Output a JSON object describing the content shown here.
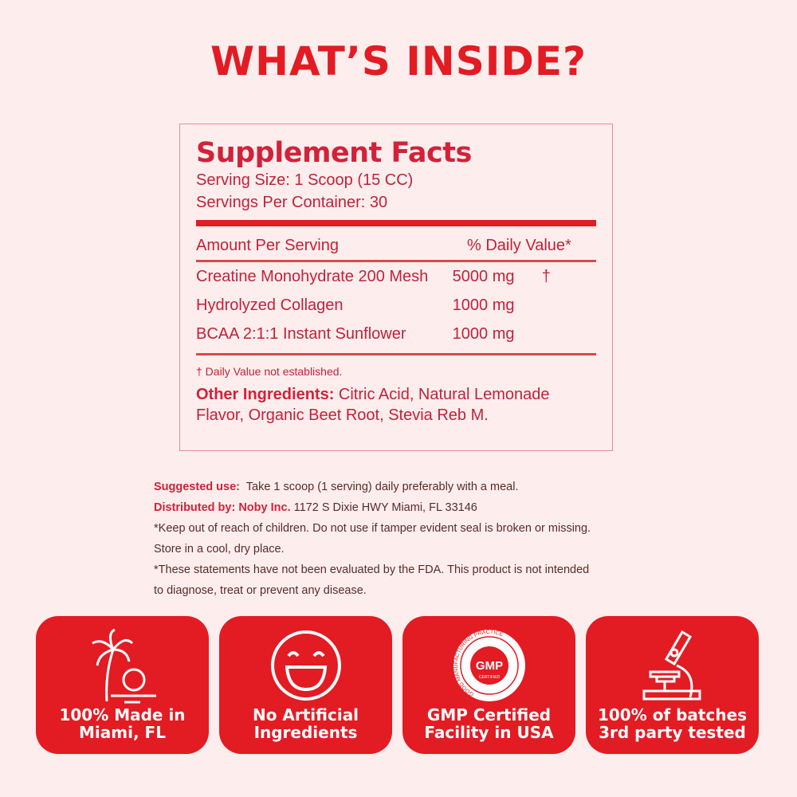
{
  "title": "WHAT’S INSIDE?",
  "facts": {
    "heading": "Supplement Facts",
    "serving_size": "Serving Size: 1 Scoop (15 CC)",
    "servings": "Servings Per Container: 30",
    "col_amount": "Amount Per Serving",
    "col_dv": "% Daily Value*",
    "rows": [
      {
        "name": "Creatine Monohydrate 200 Mesh",
        "amount": "5000 mg",
        "dv": "†"
      },
      {
        "name": "Hydrolyzed Collagen",
        "amount": "1000 mg",
        "dv": ""
      },
      {
        "name": "BCAA 2:1:1 Instant Sunflower",
        "amount": "1000 mg",
        "dv": ""
      }
    ],
    "dagger_note": "† Daily Value not established.",
    "other_label": "Other Ingredients:",
    "other_text": " Citric Acid, Natural Lemonade Flavor, Organic Beet Root, Stevia Reb M."
  },
  "notes": {
    "use_label": "Suggested use:",
    "use_text": "  Take 1 scoop (1 serving) daily preferably with a meal.",
    "dist_label": "Distributed by: Noby Inc.",
    "dist_text": " 1172 S Dixie HWY Miami, FL 33146",
    "keep": "*Keep out of reach of children. Do not use if tamper evident seal is broken or missing.",
    "store": "Store in a cool, dry place.",
    "fda1": "*These statements have not been evaluated by the FDA. This product is not intended",
    "fda2": "to diagnose, treat or prevent any disease."
  },
  "badges": [
    {
      "icon": "palm-tree-icon",
      "line1": "100% Made in",
      "line2": "Miami, FL"
    },
    {
      "icon": "smiley-icon",
      "line1": "No Artificial",
      "line2": "Ingredients"
    },
    {
      "icon": "gmp-seal-icon",
      "line1": "GMP Certified",
      "line2": "Facility in USA",
      "seal_text": "GMP",
      "seal_sub": "CERTIFIED",
      "seal_ring": "GOOD MANUFACTURING PRACTICE"
    },
    {
      "icon": "microscope-icon",
      "line1": "100% of batches",
      "line2": "3rd party tested"
    }
  ],
  "colors": {
    "brand_red": "#e31b23",
    "background": "#fdeeed"
  }
}
